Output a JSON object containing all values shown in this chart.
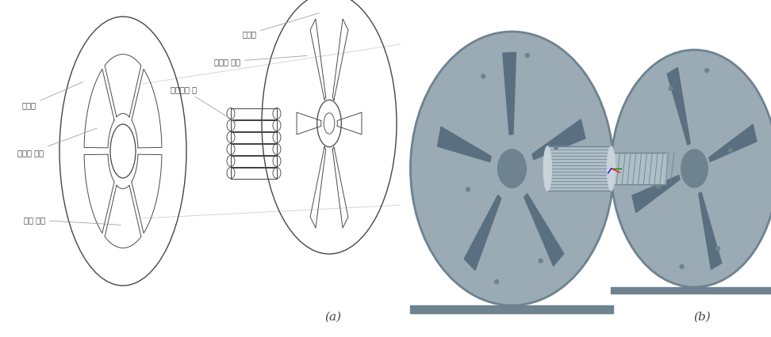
{
  "fig_width": 9.72,
  "fig_height": 4.26,
  "dpi": 100,
  "bg_color": "#ffffff",
  "label_a": "(a)",
  "label_b": "(b)",
  "korean_labels": {
    "gijunpan": "기준판",
    "gijunpan_slot": "기준판 슬롯",
    "sliding_pin": "슬라이딩 핀",
    "hoejeonpan": "회전판",
    "hoejeonpan_slot": "회전판 슬롯",
    "pulley_center": "풀리 중심"
  },
  "line_color": "#444444",
  "gray_face": "#9aabb5",
  "gray_dark": "#6e8290",
  "gray_light": "#c8d4da",
  "gray_mid": "#aebfc8",
  "gray_slot": "#5a7080"
}
